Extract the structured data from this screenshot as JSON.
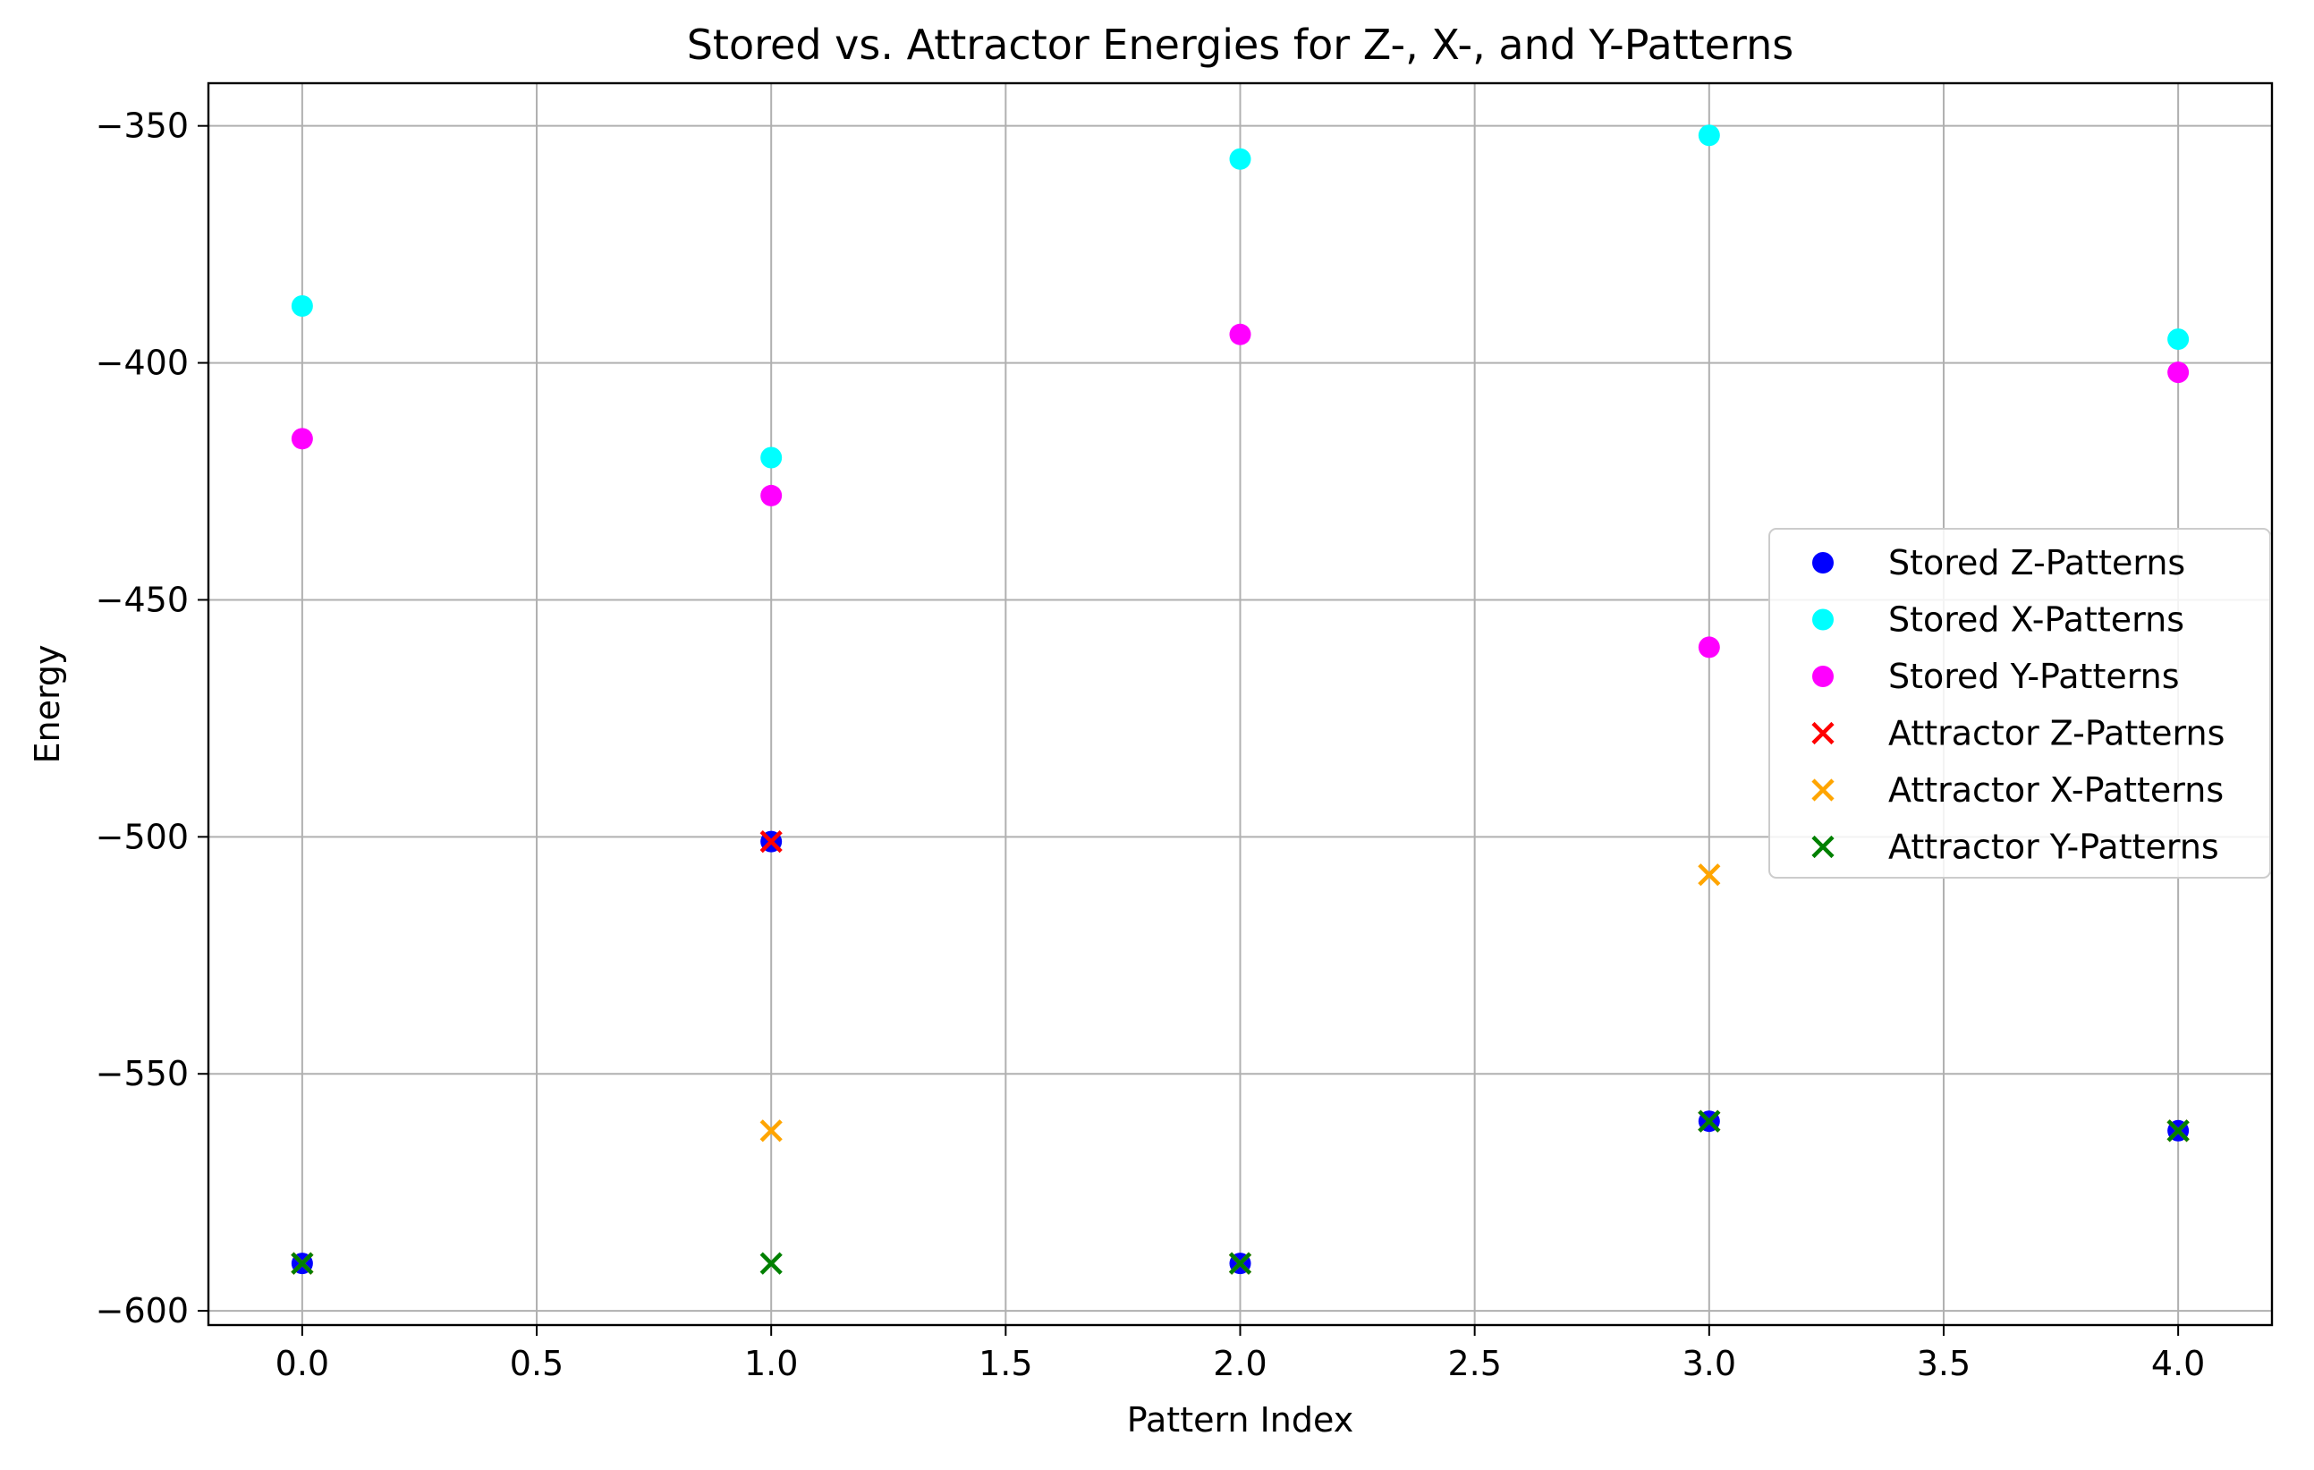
{
  "chart_data": {
    "type": "scatter",
    "title": "Stored vs. Attractor Energies for Z-, X-, and Y-Patterns",
    "xlabel": "Pattern Index",
    "ylabel": "Energy",
    "xlim": [
      -0.2,
      4.2
    ],
    "ylim": [
      -603,
      -341
    ],
    "x_ticks": [
      0.0,
      0.5,
      1.0,
      1.5,
      2.0,
      2.5,
      3.0,
      3.5,
      4.0
    ],
    "x_tick_labels": [
      "0.0",
      "0.5",
      "1.0",
      "1.5",
      "2.0",
      "2.5",
      "3.0",
      "3.5",
      "4.0"
    ],
    "y_ticks": [
      -350,
      -400,
      -450,
      -500,
      -550,
      -600
    ],
    "y_tick_labels": [
      "−350",
      "−400",
      "−450",
      "−500",
      "−550",
      "−600"
    ],
    "grid": true,
    "legend_position": "center-right",
    "series": [
      {
        "name": "Stored Z-Patterns",
        "marker": "circle",
        "color": "#0000ff",
        "x": [
          0,
          1,
          2,
          3,
          4
        ],
        "values": [
          -590,
          -501,
          -590,
          -560,
          -562
        ]
      },
      {
        "name": "Stored X-Patterns",
        "marker": "circle",
        "color": "#00ffff",
        "x": [
          0,
          1,
          2,
          3,
          4
        ],
        "values": [
          -388,
          -420,
          -357,
          -352,
          -395
        ]
      },
      {
        "name": "Stored Y-Patterns",
        "marker": "circle",
        "color": "#ff00ff",
        "x": [
          0,
          1,
          2,
          3,
          4
        ],
        "values": [
          -416,
          -428,
          -394,
          -460,
          -402
        ]
      },
      {
        "name": "Attractor Z-Patterns",
        "marker": "x",
        "color": "#ff0000",
        "x": [
          0,
          1,
          2,
          3,
          4
        ],
        "values": [
          -590,
          -501,
          -590,
          -560,
          -562
        ]
      },
      {
        "name": "Attractor X-Patterns",
        "marker": "x",
        "color": "#ffa500",
        "x": [
          0,
          1,
          2,
          3,
          4
        ],
        "values": [
          -590,
          -562,
          -590,
          -508,
          -562
        ]
      },
      {
        "name": "Attractor Y-Patterns",
        "marker": "x",
        "color": "#008000",
        "x": [
          0,
          1,
          2,
          3,
          4
        ],
        "values": [
          -590,
          -590,
          -590,
          -560,
          -562
        ]
      }
    ]
  }
}
